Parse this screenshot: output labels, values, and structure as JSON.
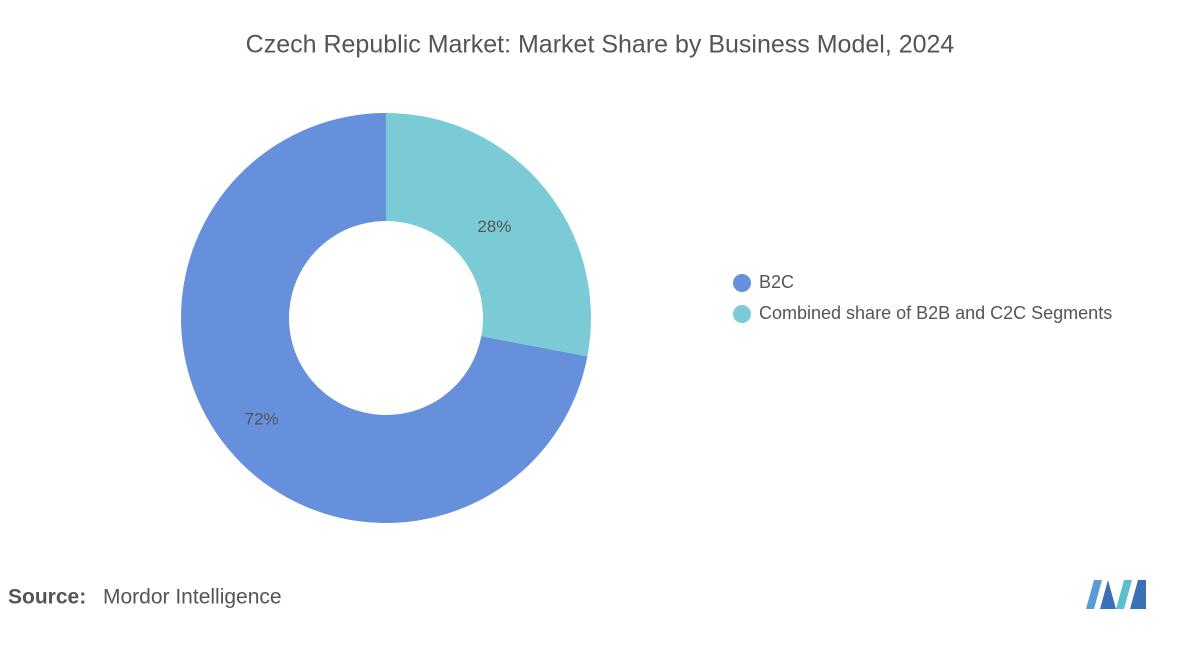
{
  "chart_data": {
    "type": "donut",
    "title": "Czech Republic Market: Market Share by Business Model, 2024",
    "series": [
      {
        "name": "B2C",
        "color": "#668fdc",
        "values": [
          72
        ],
        "value_labels": [
          "72%"
        ]
      },
      {
        "name": "Combined share of B2B and C2C Segments",
        "color": "#7acbd6",
        "values": [
          28
        ],
        "value_labels": [
          "28%"
        ]
      }
    ],
    "legend": "right",
    "source_label": "Source:",
    "source": "Mordor Intelligence"
  }
}
